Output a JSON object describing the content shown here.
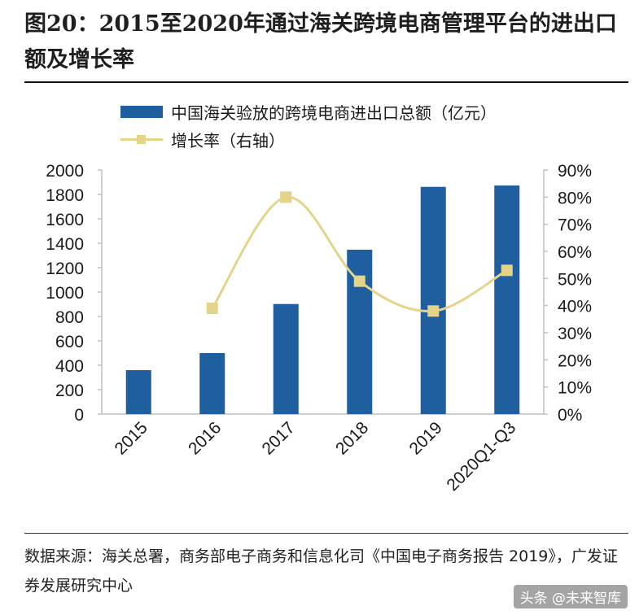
{
  "title": "图20：2015至2020年通过海关跨境电商管理平台的进出口额及增长率",
  "legend": {
    "bar_label": "中国海关验放的跨境电商进出口总额（亿元）",
    "line_label": "增长率（右轴）"
  },
  "source": "数据来源：海关总署，商务部电子商务和信息化司《中国电子商务报告 2019》，广发证券发展研究中心",
  "watermark": "头条 @未来智库",
  "colors": {
    "bar": "#1f5f9f",
    "line": "#e3d48a",
    "axis": "#bfbfbf",
    "text": "#1a1a1a"
  },
  "chart_data": {
    "type": "bar",
    "categories": [
      "2015",
      "2016",
      "2017",
      "2018",
      "2019",
      "2020Q1-Q3"
    ],
    "series": [
      {
        "name": "中国海关验放的跨境电商进出口总额（亿元）",
        "type": "bar",
        "axis": "left",
        "values": [
          360,
          500,
          902,
          1347,
          1862,
          1873
        ]
      },
      {
        "name": "增长率（右轴）",
        "type": "line",
        "axis": "right",
        "values": [
          null,
          0.39,
          0.8,
          0.49,
          0.38,
          0.53
        ]
      }
    ],
    "y_left": {
      "min": 0,
      "max": 2000,
      "step": 200,
      "tick_labels": [
        "0",
        "200",
        "400",
        "600",
        "800",
        "1000",
        "1200",
        "1400",
        "1600",
        "1800",
        "2000"
      ]
    },
    "y_right": {
      "min": 0,
      "max": 0.9,
      "step": 0.1,
      "tick_labels": [
        "0%",
        "10%",
        "20%",
        "30%",
        "40%",
        "50%",
        "60%",
        "70%",
        "80%",
        "90%"
      ]
    },
    "grid": false,
    "legend_position": "top"
  }
}
